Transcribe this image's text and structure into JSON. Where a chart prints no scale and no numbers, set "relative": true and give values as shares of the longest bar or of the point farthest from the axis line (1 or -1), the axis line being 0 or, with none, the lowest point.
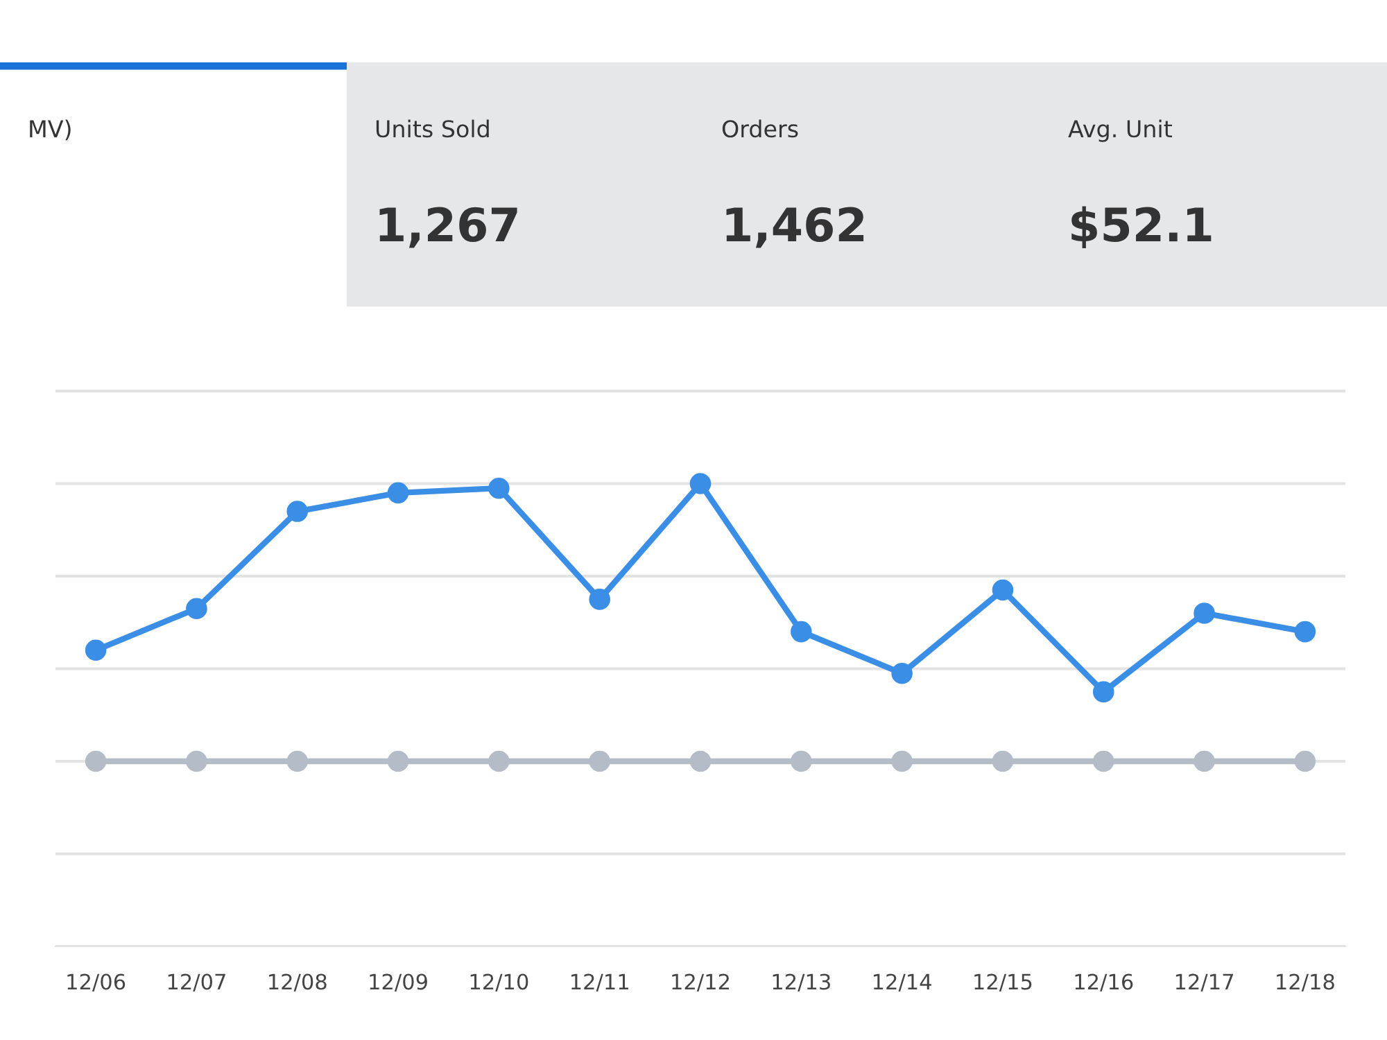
{
  "chart_data": [
    {
      "type": "other",
      "categories": [
        "MV)",
        "Units Sold",
        "Orders",
        "Avg. Unit"
      ],
      "value_labels": [
        null,
        "1,267",
        "1,462",
        "$52.1"
      ]
    },
    {
      "type": "line",
      "relative": true,
      "grid": "y",
      "marker": "circle",
      "line_style": "solid",
      "tick_labels": "x",
      "categories": [
        "12/06",
        "12/07",
        "12/08",
        "12/09",
        "12/10",
        "12/11",
        "12/12",
        "12/13",
        "12/14",
        "12/15",
        "12/16",
        "12/17",
        "12/18"
      ],
      "series": [
        {
          "color": "#3a8ee6",
          "values": [
            0.64,
            0.73,
            0.94,
            0.98,
            0.99,
            0.75,
            1.0,
            0.68,
            0.59,
            0.77,
            0.55,
            0.72,
            0.68
          ]
        },
        {
          "color": "#b4bcc8",
          "values": [
            0.4,
            0.4,
            0.4,
            0.4,
            0.4,
            0.4,
            0.4,
            0.4,
            0.4,
            0.4,
            0.4,
            0.4,
            0.4
          ]
        }
      ]
    }
  ]
}
